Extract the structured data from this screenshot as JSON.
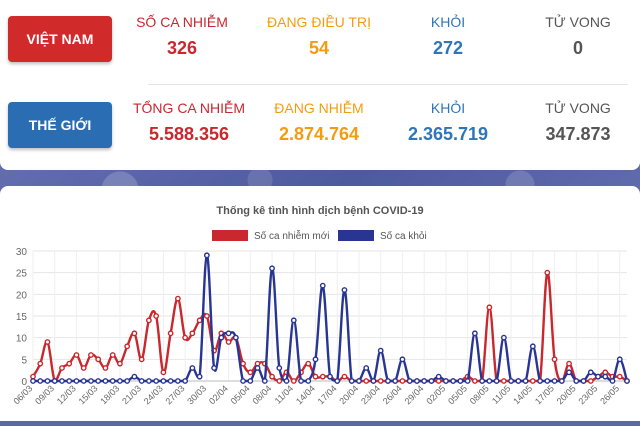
{
  "vietnam": {
    "region": "VIỆT NAM",
    "stats": [
      {
        "label": "SỐ CA NHIỄM",
        "value": "326",
        "color": "#c8282e"
      },
      {
        "label": "ĐANG ĐIỀU TRỊ",
        "value": "54",
        "color": "#f39c12"
      },
      {
        "label": "KHỎI",
        "value": "272",
        "color": "#2e76b8"
      },
      {
        "label": "TỬ VONG",
        "value": "0",
        "color": "#555555"
      }
    ]
  },
  "world": {
    "region": "THẾ GIỚI",
    "stats": [
      {
        "label": "TỔNG CA NHIỄM",
        "value": "5.588.356",
        "color": "#c8282e"
      },
      {
        "label": "ĐANG NHIỄM",
        "value": "2.874.764",
        "color": "#f39c12"
      },
      {
        "label": "KHỎI",
        "value": "2.365.719",
        "color": "#2e76b8"
      },
      {
        "label": "TỬ VONG",
        "value": "347.873",
        "color": "#555555"
      }
    ]
  },
  "chart_data": {
    "type": "line",
    "title": "Thống kê tình hình dịch bệnh COVID-19",
    "legend_position": "top",
    "grid": true,
    "ylim": [
      0,
      30
    ],
    "yticks": [
      0,
      5,
      10,
      15,
      20,
      25,
      30
    ],
    "xtick_labels": [
      "06/03",
      "09/03",
      "12/03",
      "15/03",
      "18/03",
      "21/03",
      "24/03",
      "27/03",
      "30/03",
      "02/04",
      "05/04",
      "08/04",
      "11/04",
      "14/04",
      "17/04",
      "20/04",
      "23/04",
      "26/04",
      "29/04",
      "02/05",
      "05/05",
      "08/05",
      "11/05",
      "14/05",
      "17/05",
      "20/05",
      "23/05",
      "26/05"
    ],
    "x": [
      "06/03",
      "07/03",
      "08/03",
      "09/03",
      "10/03",
      "11/03",
      "12/03",
      "13/03",
      "14/03",
      "15/03",
      "16/03",
      "17/03",
      "18/03",
      "19/03",
      "20/03",
      "21/03",
      "22/03",
      "23/03",
      "24/03",
      "25/03",
      "26/03",
      "27/03",
      "28/03",
      "29/03",
      "30/03",
      "31/03",
      "01/04",
      "02/04",
      "03/04",
      "04/04",
      "05/04",
      "06/04",
      "07/04",
      "08/04",
      "09/04",
      "10/04",
      "11/04",
      "12/04",
      "13/04",
      "14/04",
      "15/04",
      "16/04",
      "17/04",
      "18/04",
      "19/04",
      "20/04",
      "21/04",
      "22/04",
      "23/04",
      "24/04",
      "25/04",
      "26/04",
      "27/04",
      "28/04",
      "29/04",
      "30/04",
      "01/05",
      "02/05",
      "03/05",
      "04/05",
      "05/05",
      "06/05",
      "07/05",
      "08/05",
      "09/05",
      "10/05",
      "11/05",
      "12/05",
      "13/05",
      "14/05",
      "15/05",
      "16/05",
      "17/05",
      "18/05",
      "19/05",
      "20/05",
      "21/05",
      "22/05",
      "23/05",
      "24/05",
      "25/05",
      "26/05",
      "27/05"
    ],
    "series": [
      {
        "name": "Số ca nhiễm mới",
        "color": "#c8282e",
        "values": [
          1,
          4,
          9,
          0,
          3,
          4,
          6,
          3,
          6,
          5,
          3,
          6,
          4,
          8,
          11,
          5,
          14,
          15,
          2,
          11,
          19,
          10,
          11,
          14,
          15,
          7,
          11,
          9,
          10,
          4,
          2,
          4,
          4,
          1,
          0,
          2,
          0,
          2,
          4,
          1,
          1,
          1,
          0,
          1,
          0,
          0,
          0,
          0,
          0,
          0,
          0,
          0,
          0,
          0,
          0,
          0,
          0,
          0,
          0,
          0,
          1,
          0,
          0,
          17,
          0,
          0,
          0,
          0,
          0,
          0,
          0,
          25,
          5,
          0,
          4,
          0,
          0,
          0,
          1,
          2,
          1,
          1,
          0
        ]
      },
      {
        "name": "Số ca khỏi",
        "color": "#283593",
        "values": [
          0,
          0,
          0,
          0,
          0,
          0,
          0,
          0,
          0,
          0,
          0,
          0,
          0,
          0,
          1,
          0,
          0,
          0,
          0,
          0,
          0,
          0,
          3,
          1,
          29,
          3,
          10,
          11,
          10,
          0,
          0,
          3,
          0,
          26,
          3,
          0,
          14,
          0,
          0,
          5,
          22,
          1,
          0,
          21,
          0,
          0,
          3,
          0,
          7,
          0,
          0,
          5,
          0,
          0,
          0,
          0,
          1,
          0,
          0,
          0,
          0,
          11,
          0,
          0,
          0,
          10,
          0,
          0,
          0,
          8,
          0,
          0,
          0,
          0,
          2,
          0,
          0,
          2,
          1,
          1,
          0,
          5,
          0
        ]
      }
    ]
  }
}
